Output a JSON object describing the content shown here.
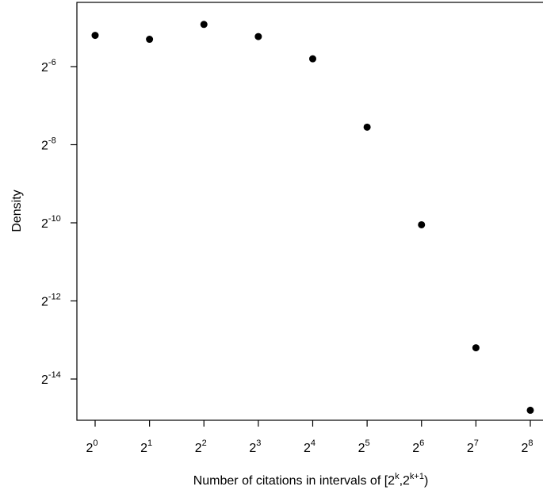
{
  "chart_data": {
    "type": "scatter",
    "title": "",
    "xlabel": "Number of citations in intervals of [2^k, 2^(k+1))",
    "xlabel_parts": {
      "prefix": "Number of citations in intervals of [2",
      "sup1": "k",
      "middle": ",2",
      "sup2": "k+1",
      "suffix": ")"
    },
    "ylabel": "Density",
    "x_scale": "log2",
    "y_scale": "log2",
    "x_exponents": [
      0,
      1,
      2,
      3,
      4,
      5,
      6,
      7,
      8
    ],
    "y_exponents": [
      -5.2,
      -5.3,
      -4.92,
      -5.23,
      -5.8,
      -7.55,
      -10.05,
      -13.2,
      -14.8
    ],
    "xlim_exponent": [
      -0.3,
      8.0
    ],
    "ylim_exponent": [
      -15.2,
      -4.6
    ],
    "x_ticks": [
      {
        "base": "2",
        "exp": "0"
      },
      {
        "base": "2",
        "exp": "1"
      },
      {
        "base": "2",
        "exp": "2"
      },
      {
        "base": "2",
        "exp": "3"
      },
      {
        "base": "2",
        "exp": "4"
      },
      {
        "base": "2",
        "exp": "5"
      },
      {
        "base": "2",
        "exp": "6"
      },
      {
        "base": "2",
        "exp": "7"
      },
      {
        "base": "2",
        "exp": "8"
      }
    ],
    "y_ticks": [
      {
        "value": -6,
        "base": "2",
        "exp": "-6"
      },
      {
        "value": -8,
        "base": "2",
        "exp": "-8"
      },
      {
        "value": -10,
        "base": "2",
        "exp": "-10"
      },
      {
        "value": -12,
        "base": "2",
        "exp": "-12"
      },
      {
        "value": -14,
        "base": "2",
        "exp": "-14"
      }
    ],
    "grid": false,
    "legend": "none",
    "marker_color": "#000000"
  }
}
